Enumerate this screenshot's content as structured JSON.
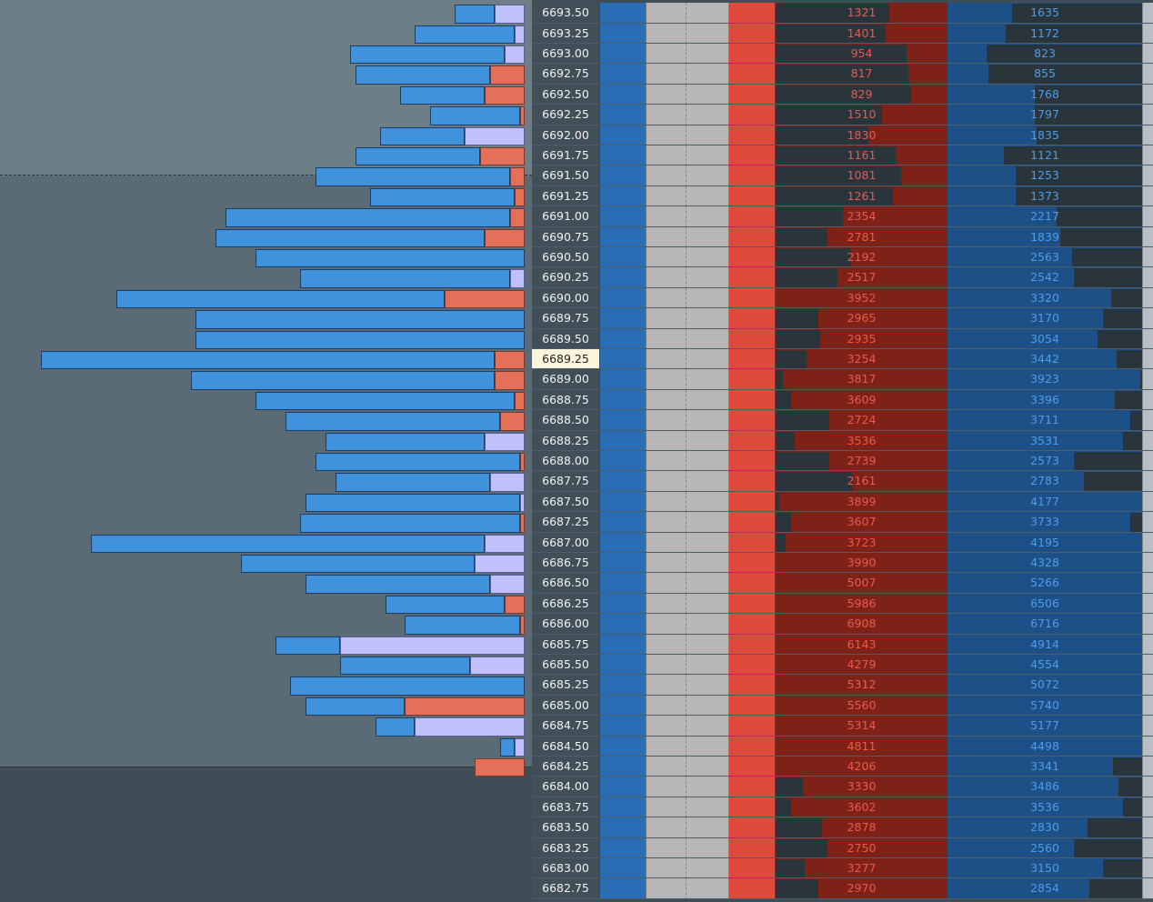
{
  "current_price": "6689.25",
  "colors": {
    "profile_blue": "#4192dd",
    "profile_lavender": "#c0c0fb",
    "profile_orange": "#e5705a",
    "bid_column": "#2b6db5",
    "ask_column": "#e04a3c",
    "sell_volume": "#f3564a",
    "buy_volume": "#4e9de8"
  },
  "levels": [
    {
      "price": "6693.50",
      "sell": "1321",
      "buy": "1635",
      "sell_fill": 0.66,
      "buy_fill": 0.33
    },
    {
      "price": "6693.25",
      "sell": "1401",
      "buy": "1172",
      "sell_fill": 0.64,
      "buy_fill": 0.3
    },
    {
      "price": "6693.00",
      "sell": "954",
      "buy": "823",
      "sell_fill": 0.76,
      "buy_fill": 0.2
    },
    {
      "price": "6692.75",
      "sell": "817",
      "buy": "855",
      "sell_fill": 0.77,
      "buy_fill": 0.21
    },
    {
      "price": "6692.50",
      "sell": "829",
      "buy": "1768",
      "sell_fill": 0.79,
      "buy_fill": 0.45
    },
    {
      "price": "6692.25",
      "sell": "1510",
      "buy": "1797",
      "sell_fill": 0.62,
      "buy_fill": 0.45
    },
    {
      "price": "6692.00",
      "sell": "1830",
      "buy": "1835",
      "sell_fill": 0.54,
      "buy_fill": 0.46
    },
    {
      "price": "6691.75",
      "sell": "1161",
      "buy": "1121",
      "sell_fill": 0.7,
      "buy_fill": 0.29
    },
    {
      "price": "6691.50",
      "sell": "1081",
      "buy": "1253",
      "sell_fill": 0.73,
      "buy_fill": 0.35
    },
    {
      "price": "6691.25",
      "sell": "1261",
      "buy": "1373",
      "sell_fill": 0.68,
      "buy_fill": 0.35
    },
    {
      "price": "6691.00",
      "sell": "2354",
      "buy": "2217",
      "sell_fill": 0.39,
      "buy_fill": 0.56
    },
    {
      "price": "6690.75",
      "sell": "2781",
      "buy": "1839",
      "sell_fill": 0.3,
      "buy_fill": 0.58
    },
    {
      "price": "6690.50",
      "sell": "2192",
      "buy": "2563",
      "sell_fill": 0.44,
      "buy_fill": 0.64
    },
    {
      "price": "6690.25",
      "sell": "2517",
      "buy": "2542",
      "sell_fill": 0.36,
      "buy_fill": 0.65
    },
    {
      "price": "6690.00",
      "sell": "3952",
      "buy": "3320",
      "sell_fill": 0.0,
      "buy_fill": 0.84
    },
    {
      "price": "6689.75",
      "sell": "2965",
      "buy": "3170",
      "sell_fill": 0.25,
      "buy_fill": 0.8
    },
    {
      "price": "6689.50",
      "sell": "2935",
      "buy": "3054",
      "sell_fill": 0.26,
      "buy_fill": 0.77
    },
    {
      "price": "6689.25",
      "sell": "3254",
      "buy": "3442",
      "sell_fill": 0.18,
      "buy_fill": 0.87
    },
    {
      "price": "6689.00",
      "sell": "3817",
      "buy": "3923",
      "sell_fill": 0.04,
      "buy_fill": 0.99
    },
    {
      "price": "6688.75",
      "sell": "3609",
      "buy": "3396",
      "sell_fill": 0.09,
      "buy_fill": 0.86
    },
    {
      "price": "6688.50",
      "sell": "2724",
      "buy": "3711",
      "sell_fill": 0.31,
      "buy_fill": 0.94
    },
    {
      "price": "6688.25",
      "sell": "3536",
      "buy": "3531",
      "sell_fill": 0.11,
      "buy_fill": 0.9
    },
    {
      "price": "6688.00",
      "sell": "2739",
      "buy": "2573",
      "sell_fill": 0.31,
      "buy_fill": 0.65
    },
    {
      "price": "6687.75",
      "sell": "2161",
      "buy": "2783",
      "sell_fill": 0.45,
      "buy_fill": 0.7
    },
    {
      "price": "6687.50",
      "sell": "3899",
      "buy": "4177",
      "sell_fill": 0.02,
      "buy_fill": 1.0
    },
    {
      "price": "6687.25",
      "sell": "3607",
      "buy": "3733",
      "sell_fill": 0.09,
      "buy_fill": 0.94
    },
    {
      "price": "6687.00",
      "sell": "3723",
      "buy": "4195",
      "sell_fill": 0.06,
      "buy_fill": 1.0
    },
    {
      "price": "6686.75",
      "sell": "3990",
      "buy": "4328",
      "sell_fill": 0.0,
      "buy_fill": 1.0
    },
    {
      "price": "6686.50",
      "sell": "5007",
      "buy": "5266",
      "sell_fill": 0.0,
      "buy_fill": 1.0
    },
    {
      "price": "6686.25",
      "sell": "5986",
      "buy": "6506",
      "sell_fill": 0.0,
      "buy_fill": 1.0
    },
    {
      "price": "6686.00",
      "sell": "6908",
      "buy": "6716",
      "sell_fill": 0.0,
      "buy_fill": 1.0
    },
    {
      "price": "6685.75",
      "sell": "6143",
      "buy": "4914",
      "sell_fill": 0.0,
      "buy_fill": 1.0
    },
    {
      "price": "6685.50",
      "sell": "4279",
      "buy": "4554",
      "sell_fill": 0.0,
      "buy_fill": 1.0
    },
    {
      "price": "6685.25",
      "sell": "5312",
      "buy": "5072",
      "sell_fill": 0.0,
      "buy_fill": 1.0
    },
    {
      "price": "6685.00",
      "sell": "5560",
      "buy": "5740",
      "sell_fill": 0.0,
      "buy_fill": 1.0
    },
    {
      "price": "6684.75",
      "sell": "5314",
      "buy": "5177",
      "sell_fill": 0.0,
      "buy_fill": 1.0
    },
    {
      "price": "6684.50",
      "sell": "4811",
      "buy": "4498",
      "sell_fill": 0.0,
      "buy_fill": 1.0
    },
    {
      "price": "6684.25",
      "sell": "4206",
      "buy": "3341",
      "sell_fill": 0.0,
      "buy_fill": 0.85
    },
    {
      "price": "6684.00",
      "sell": "3330",
      "buy": "3486",
      "sell_fill": 0.16,
      "buy_fill": 0.88
    },
    {
      "price": "6683.75",
      "sell": "3602",
      "buy": "3536",
      "sell_fill": 0.09,
      "buy_fill": 0.9
    },
    {
      "price": "6683.50",
      "sell": "2878",
      "buy": "2830",
      "sell_fill": 0.27,
      "buy_fill": 0.72
    },
    {
      "price": "6683.25",
      "sell": "2750",
      "buy": "2560",
      "sell_fill": 0.3,
      "buy_fill": 0.65
    },
    {
      "price": "6683.00",
      "sell": "3277",
      "buy": "3150",
      "sell_fill": 0.17,
      "buy_fill": 0.8
    },
    {
      "price": "6682.75",
      "sell": "2970",
      "buy": "2854",
      "sell_fill": 0.25,
      "buy_fill": 0.73
    }
  ],
  "volume_profile": [
    {
      "total": 0.14,
      "tail": 0.06,
      "tail_color": "lavender"
    },
    {
      "total": 0.22,
      "tail": 0.02,
      "tail_color": "lavender"
    },
    {
      "total": 0.35,
      "tail": 0.04,
      "tail_color": "lavender"
    },
    {
      "total": 0.34,
      "tail": 0.07,
      "tail_color": "orange"
    },
    {
      "total": 0.25,
      "tail": 0.08,
      "tail_color": "orange"
    },
    {
      "total": 0.19,
      "tail": 0.01,
      "tail_color": "orange"
    },
    {
      "total": 0.29,
      "tail": 0.12,
      "tail_color": "lavender"
    },
    {
      "total": 0.34,
      "tail": 0.09,
      "tail_color": "orange"
    },
    {
      "total": 0.42,
      "tail": 0.03,
      "tail_color": "orange"
    },
    {
      "total": 0.31,
      "tail": 0.02,
      "tail_color": "orange"
    },
    {
      "total": 0.6,
      "tail": 0.03,
      "tail_color": "orange"
    },
    {
      "total": 0.62,
      "tail": 0.08,
      "tail_color": "orange"
    },
    {
      "total": 0.54,
      "tail": 0.0,
      "tail_color": "orange"
    },
    {
      "total": 0.45,
      "tail": 0.03,
      "tail_color": "lavender"
    },
    {
      "total": 0.82,
      "tail": 0.16,
      "tail_color": "orange"
    },
    {
      "total": 0.66,
      "tail": 0.0,
      "tail_color": "orange"
    },
    {
      "total": 0.66,
      "tail": 0.0,
      "tail_color": "orange"
    },
    {
      "total": 0.97,
      "tail": 0.06,
      "tail_color": "orange"
    },
    {
      "total": 0.67,
      "tail": 0.06,
      "tail_color": "orange"
    },
    {
      "total": 0.54,
      "tail": 0.02,
      "tail_color": "orange"
    },
    {
      "total": 0.48,
      "tail": 0.05,
      "tail_color": "orange"
    },
    {
      "total": 0.4,
      "tail": 0.08,
      "tail_color": "lavender"
    },
    {
      "total": 0.42,
      "tail": 0.01,
      "tail_color": "orange"
    },
    {
      "total": 0.38,
      "tail": 0.07,
      "tail_color": "lavender"
    },
    {
      "total": 0.44,
      "tail": 0.01,
      "tail_color": "lavender"
    },
    {
      "total": 0.45,
      "tail": 0.01,
      "tail_color": "orange"
    },
    {
      "total": 0.87,
      "tail": 0.08,
      "tail_color": "lavender"
    },
    {
      "total": 0.57,
      "tail": 0.1,
      "tail_color": "lavender"
    },
    {
      "total": 0.44,
      "tail": 0.07,
      "tail_color": "lavender"
    },
    {
      "total": 0.28,
      "tail": 0.04,
      "tail_color": "orange"
    },
    {
      "total": 0.24,
      "tail": 0.01,
      "tail_color": "orange"
    },
    {
      "total": 0.5,
      "tail": 0.37,
      "tail_color": "lavender"
    },
    {
      "total": 0.37,
      "tail": 0.11,
      "tail_color": "lavender"
    },
    {
      "total": 0.47,
      "tail": 0.0,
      "tail_color": "orange"
    },
    {
      "total": 0.44,
      "tail": 0.24,
      "tail_color": "orange"
    },
    {
      "total": 0.3,
      "tail": 0.22,
      "tail_color": "lavender"
    },
    {
      "total": 0.05,
      "tail": 0.02,
      "tail_color": "lavender"
    },
    {
      "total": 0.1,
      "tail": 0.1,
      "tail_color": "orange"
    },
    {
      "total": 0.0,
      "tail": 0.0,
      "tail_color": "orange"
    },
    {
      "total": 0.0,
      "tail": 0.0,
      "tail_color": "orange"
    },
    {
      "total": 0.0,
      "tail": 0.0,
      "tail_color": "orange"
    },
    {
      "total": 0.0,
      "tail": 0.0,
      "tail_color": "orange"
    },
    {
      "total": 0.0,
      "tail": 0.0,
      "tail_color": "orange"
    },
    {
      "total": 0.0,
      "tail": 0.0,
      "tail_color": "orange"
    }
  ]
}
